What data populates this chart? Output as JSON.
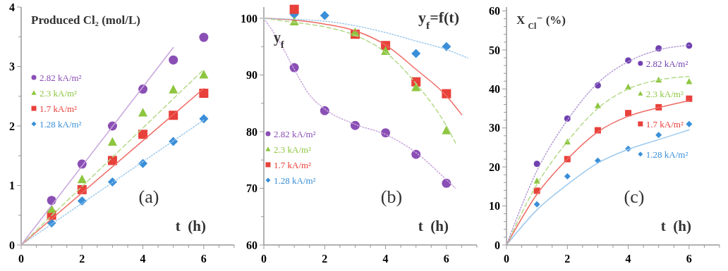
{
  "chart_data": [
    {
      "type": "scatter",
      "ylabel": "Produced Cl₂ (mol/L)",
      "xlabel": "t  (h)",
      "annotations": [
        "(a)"
      ],
      "legend": "top left",
      "grid": false,
      "xlim": [
        0,
        7
      ],
      "ylim": [
        0,
        4
      ],
      "xticks": [
        0,
        {
          "value": 0.5,
          "label": null
        },
        {
          "value": 1,
          "label": null
        },
        {
          "value": 1.5,
          "label": null
        },
        2,
        {
          "value": 2.5,
          "label": null
        },
        {
          "value": 3,
          "label": null
        },
        {
          "value": 3.5,
          "label": null
        },
        4,
        {
          "value": 4.5,
          "label": null
        },
        {
          "value": 5,
          "label": null
        },
        {
          "value": 5.5,
          "label": null
        },
        6,
        {
          "value": 6.5,
          "label": null
        },
        {
          "value": 7,
          "label": null
        }
      ],
      "yticks": [
        0,
        {
          "value": 0.5,
          "label": null
        },
        1,
        {
          "value": 1.5,
          "label": null
        },
        2,
        {
          "value": 2.5,
          "label": null
        },
        3,
        {
          "value": 3.5,
          "label": null
        },
        4
      ],
      "series": [
        {
          "type": "line",
          "color": "#c9a6dd",
          "line_style": "solid",
          "x": [
            0,
            5
          ],
          "values": [
            0,
            3.32
          ]
        },
        {
          "type": "line",
          "color": "#b5d98a",
          "line_style": "dashed",
          "x": [
            0,
            6
          ],
          "values": [
            0,
            2.95
          ]
        },
        {
          "type": "line",
          "color": "#ee6a63",
          "line_style": "solid",
          "x": [
            0,
            6
          ],
          "values": [
            0,
            2.63
          ]
        },
        {
          "type": "line",
          "color": "#9cc9ee",
          "line_style": "dotted",
          "x": [
            0,
            6
          ],
          "values": [
            0,
            2.1
          ]
        },
        {
          "name": "2.82 kA/m²",
          "color": "#8a4fb5",
          "marker": "circle",
          "x": [
            1,
            2,
            3,
            4,
            5,
            6
          ],
          "values": [
            0.75,
            1.36,
            2.0,
            2.62,
            3.11,
            3.49
          ]
        },
        {
          "name": "2.3 kA/m²",
          "color": "#8dc63f",
          "marker": "triangle",
          "x": [
            1,
            2,
            3,
            4,
            5,
            6
          ],
          "values": [
            0.6,
            1.1,
            1.73,
            2.22,
            2.61,
            2.86
          ]
        },
        {
          "name": "1.7 kA/m²",
          "color": "#e8403a",
          "marker": "square",
          "x": [
            1,
            2,
            3,
            4,
            5,
            6
          ],
          "values": [
            0.5,
            0.93,
            1.42,
            1.86,
            2.18,
            2.55
          ]
        },
        {
          "name": "1.28 kA/m²",
          "color": "#3a8fd8",
          "marker": "diamond",
          "x": [
            1,
            2,
            3,
            4,
            5,
            6
          ],
          "values": [
            0.37,
            0.74,
            1.06,
            1.37,
            1.74,
            2.12
          ]
        }
      ]
    },
    {
      "type": "scatter",
      "title": "y$_{f}$=f(t)",
      "ylabel": "y$_{f}$",
      "xlabel": "t  (h)",
      "annotations": [
        "(b)"
      ],
      "legend": "bottom left",
      "grid": false,
      "xlim": [
        0,
        7
      ],
      "ylim": [
        60,
        102
      ],
      "xticks": [
        0,
        {
          "value": 0.5,
          "label": null
        },
        {
          "value": 1,
          "label": null
        },
        {
          "value": 1.5,
          "label": null
        },
        2,
        {
          "value": 2.5,
          "label": null
        },
        {
          "value": 3,
          "label": null
        },
        {
          "value": 3.5,
          "label": null
        },
        4,
        {
          "value": 4.5,
          "label": null
        },
        {
          "value": 5,
          "label": null
        },
        {
          "value": 5.5,
          "label": null
        },
        6,
        {
          "value": 6.5,
          "label": null
        },
        {
          "value": 7,
          "label": null
        }
      ],
      "yticks": [
        60,
        {
          "value": 65,
          "label": null
        },
        70,
        {
          "value": 75,
          "label": null
        },
        80,
        {
          "value": 85,
          "label": null
        },
        90,
        {
          "value": 95,
          "label": null
        },
        100
      ],
      "series": [
        {
          "type": "line",
          "color": "#9cc9ee",
          "line_style": "dotted",
          "x": [
            0,
            2,
            4,
            5,
            6,
            6.7
          ],
          "values": [
            100,
            99.5,
            97.5,
            96,
            94.5,
            93
          ]
        },
        {
          "type": "line",
          "color": "#b5d98a",
          "line_style": "dashed",
          "x": [
            0,
            1,
            2,
            3,
            4,
            5,
            6,
            6.3
          ],
          "values": [
            100,
            99.3,
            98.5,
            97,
            94,
            88.5,
            81,
            78
          ]
        },
        {
          "type": "line",
          "color": "#ee6a63",
          "line_style": "solid",
          "x": [
            0,
            1,
            2,
            3,
            4,
            5,
            6,
            6.5
          ],
          "values": [
            100,
            99.7,
            99,
            97.8,
            95.3,
            91,
            86.3,
            83
          ]
        },
        {
          "type": "line",
          "color": "#c9a6dd",
          "line_style": "dotted",
          "x": [
            0,
            0.5,
            1,
            1.5,
            2,
            3,
            4,
            5,
            6,
            6.3
          ],
          "values": [
            100,
            96,
            91,
            86.5,
            84,
            81.3,
            79.5,
            76.3,
            71.5,
            70
          ]
        },
        {
          "name": "2.82 kA/m²",
          "color": "#8a4fb5",
          "marker": "circle",
          "x": [
            1,
            2,
            3,
            4,
            5,
            6
          ],
          "values": [
            91.3,
            83.7,
            81.1,
            79.8,
            76.0,
            70.9
          ]
        },
        {
          "name": "2.3 kA/m²",
          "color": "#8dc63f",
          "marker": "triangle",
          "x": [
            1,
            3,
            4,
            5,
            6
          ],
          "values": [
            99.4,
            97.5,
            94.2,
            87.8,
            80.2
          ]
        },
        {
          "name": "1.7 kA/m²",
          "color": "#e8403a",
          "marker": "square",
          "x": [
            1,
            3,
            4,
            5,
            6
          ],
          "values": [
            101.6,
            97.2,
            95.2,
            88.8,
            86.7
          ]
        },
        {
          "name": "1.28 kA/m²",
          "color": "#3a8fd8",
          "marker": "diamond",
          "x": [
            1,
            2,
            5,
            6
          ],
          "values": [
            100.7,
            100.5,
            93.8,
            95.0
          ]
        }
      ]
    },
    {
      "type": "scatter",
      "ylabel": "X $_{Cl}$⁻ (%)",
      "xlabel": "t  (h)",
      "annotations": [
        "(c)"
      ],
      "legend": "right",
      "grid": false,
      "xlim": [
        0,
        7
      ],
      "ylim": [
        0,
        61
      ],
      "xticks": [
        0,
        {
          "value": 0.5,
          "label": null
        },
        {
          "value": 1,
          "label": null
        },
        {
          "value": 1.5,
          "label": null
        },
        2,
        {
          "value": 2.5,
          "label": null
        },
        {
          "value": 3,
          "label": null
        },
        {
          "value": 3.5,
          "label": null
        },
        4,
        {
          "value": 4.5,
          "label": null
        },
        {
          "value": 5,
          "label": null
        },
        {
          "value": 5.5,
          "label": null
        },
        6,
        {
          "value": 6.5,
          "label": null
        },
        {
          "value": 7,
          "label": null
        }
      ],
      "yticks": [
        0,
        {
          "value": 2,
          "label": null
        },
        {
          "value": 4,
          "label": null
        },
        {
          "value": 6,
          "label": null
        },
        {
          "value": 8,
          "label": null
        },
        10,
        {
          "value": 12,
          "label": null
        },
        {
          "value": 14,
          "label": null
        },
        {
          "value": 16,
          "label": null
        },
        {
          "value": 18,
          "label": null
        },
        20,
        {
          "value": 22,
          "label": null
        },
        {
          "value": 24,
          "label": null
        },
        {
          "value": 26,
          "label": null
        },
        {
          "value": 28,
          "label": null
        },
        30,
        {
          "value": 32,
          "label": null
        },
        {
          "value": 34,
          "label": null
        },
        {
          "value": 36,
          "label": null
        },
        {
          "value": 38,
          "label": null
        },
        40,
        {
          "value": 42,
          "label": null
        },
        {
          "value": 44,
          "label": null
        },
        {
          "value": 46,
          "label": null
        },
        {
          "value": 48,
          "label": null
        },
        50,
        {
          "value": 52,
          "label": null
        },
        {
          "value": 54,
          "label": null
        },
        {
          "value": 56,
          "label": null
        },
        {
          "value": 58,
          "label": null
        },
        60
      ],
      "series": [
        {
          "type": "line",
          "color": "#b49ad6",
          "line_style": "dotted",
          "x": [
            0,
            1,
            2,
            3,
            4,
            5,
            6
          ],
          "values": [
            0,
            19,
            32,
            41.5,
            47,
            50,
            51.2
          ]
        },
        {
          "type": "line",
          "color": "#b5d98a",
          "line_style": "dashed",
          "x": [
            0,
            1,
            2,
            3,
            4,
            5,
            6
          ],
          "values": [
            0,
            15.5,
            26.5,
            35,
            40,
            42.3,
            43.2
          ]
        },
        {
          "type": "line",
          "color": "#ee6a63",
          "line_style": "solid",
          "x": [
            0,
            1,
            2,
            3,
            4,
            5,
            6
          ],
          "values": [
            0,
            13,
            22,
            29,
            33,
            35.2,
            37
          ]
        },
        {
          "type": "line",
          "color": "#9cc9ee",
          "line_style": "solid",
          "x": [
            0,
            1,
            2,
            3,
            4,
            5,
            6
          ],
          "values": [
            0,
            9,
            15.5,
            21,
            24.5,
            27,
            29.5
          ]
        },
        {
          "name": "2.82 kA/m²",
          "color": "#7040b0",
          "marker": "circle",
          "x": [
            1,
            2,
            3,
            4,
            5,
            6
          ],
          "values": [
            20.8,
            32.4,
            40.9,
            47.3,
            50.4,
            51.1
          ]
        },
        {
          "name": "2.3 kA/m²",
          "color": "#8dc63f",
          "marker": "triangle",
          "x": [
            1,
            2,
            3,
            4,
            5,
            6
          ],
          "values": [
            16.4,
            26.4,
            35.7,
            40.5,
            42.3,
            41.9
          ]
        },
        {
          "name": "1.7 kA/m²",
          "color": "#e8403a",
          "marker": "square",
          "x": [
            1,
            2,
            3,
            4,
            5,
            6
          ],
          "values": [
            13.9,
            22.0,
            29.4,
            33.8,
            35.3,
            37.5
          ]
        },
        {
          "name": "1.28 kA/m²",
          "color": "#3a8fd8",
          "marker": "diamond",
          "x": [
            1,
            2,
            3,
            4,
            5,
            6
          ],
          "values": [
            10.4,
            17.6,
            21.6,
            24.7,
            28.2,
            31.0
          ]
        }
      ]
    }
  ]
}
